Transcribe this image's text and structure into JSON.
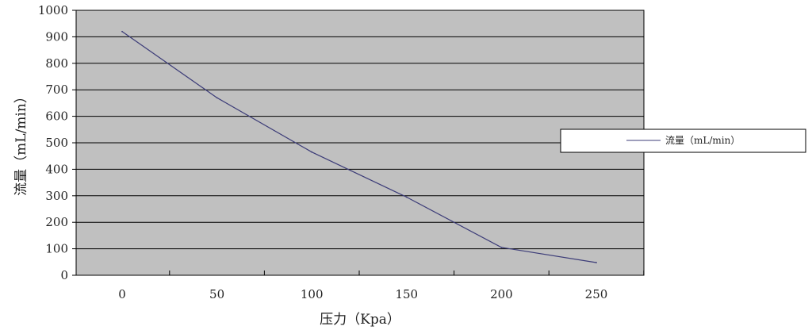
{
  "chart_data": {
    "type": "line",
    "xlabel": "压力（Kpa）",
    "ylabel": "流量（mL/min）",
    "x_ticks": [
      "0",
      "50",
      "100",
      "150",
      "200",
      "250"
    ],
    "y_ticks": [
      "0",
      "100",
      "200",
      "300",
      "400",
      "500",
      "600",
      "700",
      "800",
      "900",
      "1000"
    ],
    "ylim": [
      0,
      1000
    ],
    "grid": true,
    "legend": "right",
    "series": [
      {
        "name": "流量（mL/min）",
        "x": [
          0,
          50,
          100,
          150,
          200,
          250
        ],
        "y": [
          920,
          670,
          465,
          295,
          105,
          48
        ]
      }
    ],
    "colors": {
      "plot_background": "#c0c0c0",
      "gridline": "#000000",
      "line": "#3c3c78"
    }
  }
}
